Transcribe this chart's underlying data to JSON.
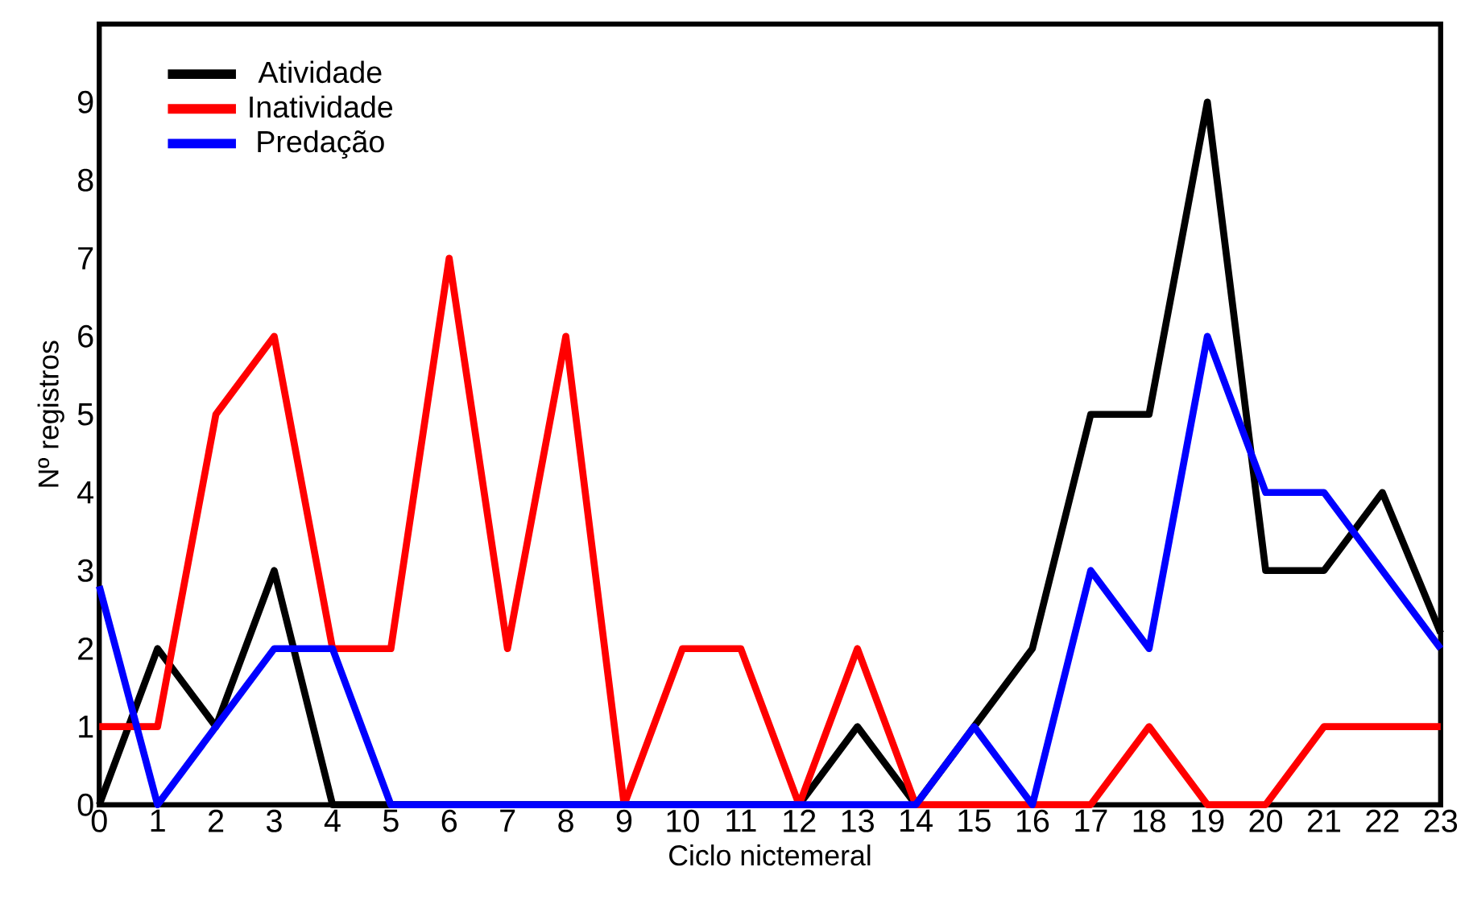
{
  "chart_data": {
    "type": "line",
    "xlabel": "Ciclo nictemeral",
    "ylabel": "Nº registros",
    "x": [
      0,
      1,
      2,
      3,
      4,
      5,
      6,
      7,
      8,
      9,
      10,
      11,
      12,
      13,
      14,
      15,
      16,
      17,
      18,
      19,
      20,
      21,
      22,
      23
    ],
    "xlim": [
      0,
      23
    ],
    "ylim": [
      0,
      10
    ],
    "xticks": [
      0,
      1,
      2,
      3,
      4,
      5,
      6,
      7,
      8,
      9,
      10,
      11,
      12,
      13,
      14,
      15,
      16,
      17,
      18,
      19,
      20,
      21,
      22,
      23
    ],
    "yticks": [
      0,
      1,
      2,
      3,
      4,
      5,
      6,
      7,
      8,
      9
    ],
    "series": [
      {
        "name": "Atividade",
        "color": "#000000",
        "values": [
          0,
          2,
          1,
          3,
          0,
          0,
          0,
          0,
          0,
          0,
          0,
          0,
          0,
          1,
          0,
          1,
          2,
          5,
          5,
          9,
          3,
          3,
          4,
          2.2
        ]
      },
      {
        "name": "Inatividade",
        "color": "#ff0000",
        "values": [
          1,
          1,
          5,
          6,
          2,
          2,
          7,
          2,
          6,
          0,
          2,
          2,
          0,
          2,
          0,
          0,
          0,
          0,
          1,
          0,
          0,
          1,
          1,
          1
        ]
      },
      {
        "name": "Predação",
        "color": "#0000ff",
        "values": [
          2.8,
          0,
          1,
          2,
          2,
          0,
          0,
          0,
          0,
          0,
          0,
          0,
          0,
          0,
          0,
          1,
          0,
          3,
          2,
          6,
          4,
          4,
          3,
          2
        ]
      }
    ],
    "grid": false,
    "legend": "top left",
    "marker": "none",
    "line_style": "solid"
  }
}
